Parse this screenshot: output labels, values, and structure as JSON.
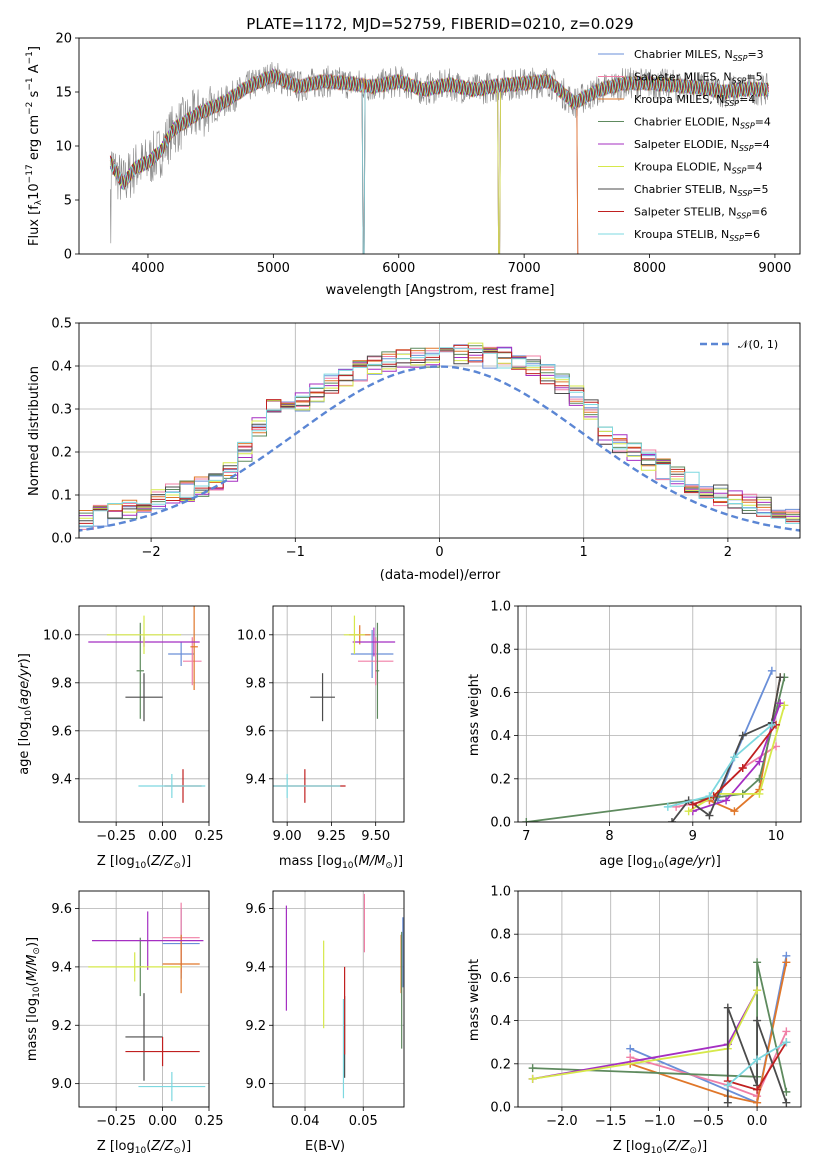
{
  "title": "PLATE=1172, MJD=52759, FIBERID=0210, z=0.029",
  "colors": {
    "Chabrier MILES": "#6a8fd8",
    "Salpeter MILES": "#f07fa6",
    "Kroupa MILES": "#e0772a",
    "Chabrier ELODIE": "#5e8a5e",
    "Salpeter ELODIE": "#a52fc2",
    "Kroupa ELODIE": "#d6e84a",
    "Chabrier STELIB": "#4b4b4b",
    "Salpeter STELIB": "#c02020",
    "Kroupa STELIB": "#7dd8e0"
  },
  "chart_data": [
    {
      "type": "line",
      "title": "PLATE=1172, MJD=52759, FIBERID=0210, z=0.029",
      "xlabel": "wavelength [Angstrom, rest frame]",
      "ylabel": "Flux [f_λ10^-17 erg cm^-2 s^-1 A^-1]",
      "xlim": [
        3450,
        9200
      ],
      "ylim": [
        0,
        20
      ],
      "xticks": [
        4000,
        5000,
        6000,
        7000,
        8000,
        9000
      ],
      "yticks": [
        0,
        5,
        10,
        15,
        20
      ],
      "legend": "top-right",
      "legend_entries": [
        {
          "model": "Chabrier MILES",
          "n": "3"
        },
        {
          "model": "Salpeter MILES",
          "n": "5"
        },
        {
          "model": "Kroupa MILES",
          "n": "4"
        },
        {
          "model": "Chabrier ELODIE",
          "n": "4"
        },
        {
          "model": "Salpeter ELODIE",
          "n": "4"
        },
        {
          "model": "Kroupa ELODIE",
          "n": "4"
        },
        {
          "model": "Chabrier STELIB",
          "n": "5"
        },
        {
          "model": "Salpeter STELIB",
          "n": "6"
        },
        {
          "model": "Kroupa STELIB",
          "n": "6"
        }
      ],
      "continuum": {
        "wave": [
          3700,
          3800,
          3900,
          4000,
          4100,
          4200,
          4400,
          4600,
          4800,
          5000,
          5200,
          5400,
          5600,
          5800,
          6000,
          6200,
          6400,
          6600,
          6800,
          7000,
          7200,
          7400,
          7600,
          7800,
          8000,
          8200,
          8400,
          8600,
          8800,
          8950
        ],
        "flux": [
          8.5,
          6.5,
          8.0,
          8.5,
          9.5,
          11.5,
          13.0,
          14.0,
          15.5,
          16.5,
          15.5,
          16.0,
          15.8,
          15.5,
          16.0,
          15.2,
          15.7,
          15.2,
          15.6,
          15.8,
          16.0,
          14.0,
          15.2,
          15.8,
          15.8,
          15.6,
          15.4,
          15.0,
          15.3,
          15.2
        ]
      },
      "model_cutoffs": [
        {
          "model": "Chabrier MILES",
          "wave": 7430
        },
        {
          "model": "Salpeter MILES",
          "wave": 7430
        },
        {
          "model": "Kroupa MILES",
          "wave": 7430
        },
        {
          "model": "Chabrier ELODIE",
          "wave": 6800
        },
        {
          "model": "Salpeter ELODIE",
          "wave": 6800
        },
        {
          "model": "Kroupa ELODIE",
          "wave": 6800
        },
        {
          "model": "Chabrier STELIB",
          "wave": 5720
        },
        {
          "model": "Salpeter STELIB",
          "wave": 5720
        },
        {
          "model": "Kroupa STELIB",
          "wave": 5720
        }
      ]
    },
    {
      "type": "bar",
      "xlabel": "(data-model)/error",
      "ylabel": "Normed distribution",
      "xlim": [
        -2.5,
        2.5
      ],
      "ylim": [
        0,
        0.5
      ],
      "xticks": [
        -2,
        -1,
        0,
        1,
        2
      ],
      "yticks": [
        0.0,
        0.1,
        0.2,
        0.3,
        0.4,
        0.5
      ],
      "ytick_labels": [
        "0.0",
        "0.1",
        "0.2",
        "0.3",
        "0.4",
        "0.5"
      ],
      "legend": "top-right",
      "legend_label": "𝒩(0, 1)",
      "bin_width": 0.1,
      "hist_base": [
        0.015,
        0.02,
        0.025,
        0.03,
        0.036,
        0.043,
        0.052,
        0.06,
        0.07,
        0.08,
        0.091,
        0.102,
        0.11,
        0.119,
        0.13,
        0.15,
        0.2,
        0.26,
        0.3,
        0.31,
        0.32,
        0.34,
        0.36,
        0.37,
        0.39,
        0.4,
        0.41,
        0.42,
        0.42,
        0.42,
        0.43,
        0.43,
        0.43,
        0.42,
        0.42,
        0.41,
        0.4,
        0.38,
        0.36,
        0.33,
        0.3,
        0.24,
        0.22,
        0.2,
        0.18,
        0.16,
        0.145,
        0.13,
        0.115,
        0.1,
        0.09,
        0.08,
        0.07,
        0.065,
        0.058,
        0.05,
        0.045,
        0.04,
        0.03,
        0.02
      ]
    },
    {
      "type": "scatter",
      "xlabel": "Z [log10(Z/Z⊙)]",
      "ylabel": "age  [log10(age/yr)]",
      "xlim": [
        -0.45,
        0.25
      ],
      "ylim": [
        9.22,
        10.12
      ],
      "xticks": [
        -0.25,
        0.0,
        0.25
      ],
      "xtick_labels": [
        "−0.25",
        "0.00",
        "0.25"
      ],
      "yticks": [
        9.4,
        9.6,
        9.8,
        10.0
      ],
      "ytick_labels": [
        "9.4",
        "9.6",
        "9.8",
        "10.0"
      ],
      "points": [
        {
          "model": "Chabrier MILES",
          "x": 0.1,
          "y": 9.92,
          "xe": 0.07,
          "ye": 0.05
        },
        {
          "model": "Salpeter MILES",
          "x": 0.16,
          "y": 9.89,
          "xe": 0.05,
          "ye": 0.1
        },
        {
          "model": "Kroupa MILES",
          "x": 0.17,
          "y": 9.95,
          "xe": 0.02,
          "ye": 0.18
        },
        {
          "model": "Chabrier ELODIE",
          "x": -0.12,
          "y": 9.85,
          "xe": 0.02,
          "ye": 0.2
        },
        {
          "model": "Salpeter ELODIE",
          "x": -0.1,
          "y": 9.97,
          "xe": 0.3,
          "ye": 0.02
        },
        {
          "model": "Kroupa ELODIE",
          "x": -0.1,
          "y": 10.0,
          "xe": 0.2,
          "ye": 0.08
        },
        {
          "model": "Chabrier STELIB",
          "x": -0.1,
          "y": 9.74,
          "xe": 0.1,
          "ye": 0.1
        },
        {
          "model": "Salpeter STELIB",
          "x": 0.11,
          "y": 9.37,
          "xe": 0.1,
          "ye": 0.07
        },
        {
          "model": "Kroupa STELIB",
          "x": 0.05,
          "y": 9.37,
          "xe": 0.18,
          "ye": 0.05
        }
      ]
    },
    {
      "type": "scatter",
      "xlabel": "mass [log10(M/M⊙)]",
      "ylabel": "",
      "xlim": [
        8.92,
        9.66
      ],
      "ylim": [
        9.22,
        10.12
      ],
      "xticks": [
        9.0,
        9.25,
        9.5
      ],
      "xtick_labels": [
        "9.00",
        "9.25",
        "9.50"
      ],
      "yticks": [
        9.4,
        9.6,
        9.8,
        10.0
      ],
      "ytick_labels": [
        "9.4",
        "9.6",
        "9.8",
        "10.0"
      ],
      "points": [
        {
          "model": "Chabrier MILES",
          "x": 9.48,
          "y": 9.92,
          "xe": 0.12,
          "ye": 0.1
        },
        {
          "model": "Salpeter MILES",
          "x": 9.5,
          "y": 9.89,
          "xe": 0.1,
          "ye": 0.1
        },
        {
          "model": "Kroupa MILES",
          "x": 9.41,
          "y": 10.0,
          "xe": 0.06,
          "ye": 0.04
        },
        {
          "model": "Chabrier ELODIE",
          "x": 9.51,
          "y": 9.85,
          "xe": 0.01,
          "ye": 0.2
        },
        {
          "model": "Salpeter ELODIE",
          "x": 9.49,
          "y": 9.97,
          "xe": 0.12,
          "ye": 0.06
        },
        {
          "model": "Kroupa ELODIE",
          "x": 9.38,
          "y": 10.0,
          "xe": 0.06,
          "ye": 0.08
        },
        {
          "model": "Chabrier STELIB",
          "x": 9.2,
          "y": 9.74,
          "xe": 0.07,
          "ye": 0.1
        },
        {
          "model": "Salpeter STELIB",
          "x": 9.1,
          "y": 9.37,
          "xe": 0.23,
          "ye": 0.07
        },
        {
          "model": "Kroupa STELIB",
          "x": 9.0,
          "y": 9.37,
          "xe": 0.3,
          "ye": 0.05
        }
      ]
    },
    {
      "type": "line",
      "xlabel": "age  [log10(age/yr)]",
      "ylabel": "mass weight",
      "xlim": [
        6.9,
        10.3
      ],
      "ylim": [
        0,
        1
      ],
      "xticks": [
        7,
        8,
        9,
        10
      ],
      "yticks": [
        0.0,
        0.2,
        0.4,
        0.6,
        0.8,
        1.0
      ],
      "ytick_labels": [
        "0.0",
        "0.2",
        "0.4",
        "0.6",
        "0.8",
        "1.0"
      ],
      "series": [
        {
          "model": "Chabrier MILES",
          "x": [
            9.3,
            9.5,
            9.95
          ],
          "y": [
            0.1,
            0.3,
            0.7
          ]
        },
        {
          "model": "Salpeter MILES",
          "x": [
            8.8,
            9.2,
            9.6,
            10.0
          ],
          "y": [
            0.07,
            0.1,
            0.25,
            0.35
          ]
        },
        {
          "model": "Kroupa MILES",
          "x": [
            9.2,
            9.5,
            9.8,
            10.05
          ],
          "y": [
            0.1,
            0.05,
            0.15,
            0.67
          ]
        },
        {
          "model": "Chabrier ELODIE",
          "x": [
            7.0,
            9.6,
            9.8,
            10.1
          ],
          "y": [
            0.0,
            0.13,
            0.2,
            0.67
          ]
        },
        {
          "model": "Salpeter ELODIE",
          "x": [
            9.0,
            9.4,
            9.8,
            10.05
          ],
          "y": [
            0.05,
            0.1,
            0.28,
            0.55
          ]
        },
        {
          "model": "Kroupa ELODIE",
          "x": [
            8.95,
            9.3,
            9.8,
            10.1
          ],
          "y": [
            0.05,
            0.13,
            0.13,
            0.54
          ]
        },
        {
          "model": "Chabrier STELIB",
          "x": [
            8.75,
            8.95,
            9.2,
            9.6,
            9.95,
            10.05
          ],
          "y": [
            0.0,
            0.1,
            0.03,
            0.4,
            0.46,
            0.67
          ]
        },
        {
          "model": "Salpeter STELIB",
          "x": [
            9.0,
            9.25,
            9.6,
            10.0
          ],
          "y": [
            0.08,
            0.12,
            0.25,
            0.45
          ]
        },
        {
          "model": "Kroupa STELIB",
          "x": [
            8.7,
            9.2,
            9.5,
            9.95
          ],
          "y": [
            0.07,
            0.12,
            0.3,
            0.45
          ]
        }
      ]
    },
    {
      "type": "scatter",
      "xlabel": "Z [log10(Z/Z⊙)]",
      "ylabel": "mass [log10(M/M⊙)]",
      "xlim": [
        -0.45,
        0.25
      ],
      "ylim": [
        8.92,
        9.66
      ],
      "xticks": [
        -0.25,
        0.0,
        0.25
      ],
      "xtick_labels": [
        "−0.25",
        "0.00",
        "0.25"
      ],
      "yticks": [
        9.0,
        9.2,
        9.4,
        9.6
      ],
      "ytick_labels": [
        "9.0",
        "9.2",
        "9.4",
        "9.6"
      ],
      "points": [
        {
          "model": "Chabrier MILES",
          "x": 0.1,
          "y": 9.48,
          "xe": 0.1,
          "ye": 0.12
        },
        {
          "model": "Salpeter MILES",
          "x": 0.1,
          "y": 9.5,
          "xe": 0.1,
          "ye": 0.12
        },
        {
          "model": "Kroupa MILES",
          "x": 0.1,
          "y": 9.41,
          "xe": 0.1,
          "ye": 0.1
        },
        {
          "model": "Chabrier ELODIE",
          "x": -0.12,
          "y": 9.4,
          "xe": 0.02,
          "ye": 0.1
        },
        {
          "model": "Salpeter ELODIE",
          "x": -0.08,
          "y": 9.49,
          "xe": 0.3,
          "ye": 0.1
        },
        {
          "model": "Kroupa ELODIE",
          "x": -0.15,
          "y": 9.4,
          "xe": 0.25,
          "ye": 0.05
        },
        {
          "model": "Chabrier STELIB",
          "x": -0.1,
          "y": 9.16,
          "xe": 0.1,
          "ye": 0.15
        },
        {
          "model": "Salpeter STELIB",
          "x": 0.0,
          "y": 9.11,
          "xe": 0.2,
          "ye": 0.05
        },
        {
          "model": "Kroupa STELIB",
          "x": 0.05,
          "y": 8.99,
          "xe": 0.18,
          "ye": 0.05
        }
      ]
    },
    {
      "type": "scatter",
      "xlabel": "E(B-V)",
      "ylabel": "",
      "xlim": [
        0.0345,
        0.057
      ],
      "ylim": [
        8.92,
        9.66
      ],
      "xticks": [
        0.04,
        0.05
      ],
      "xtick_labels": [
        "0.04",
        "0.05"
      ],
      "yticks": [
        9.0,
        9.2,
        9.4,
        9.6
      ],
      "ytick_labels": [
        "9.0",
        "9.2",
        "9.4",
        "9.6"
      ],
      "points": [
        {
          "model": "Chabrier MILES",
          "x": 0.0568,
          "y": 9.45,
          "xe": 0,
          "ye": 0.12
        },
        {
          "model": "Salpeter MILES",
          "x": 0.0502,
          "y": 9.55,
          "xe": 0,
          "ye": 0.1
        },
        {
          "model": "Kroupa MILES",
          "x": 0.0565,
          "y": 9.41,
          "xe": 0,
          "ye": 0.1
        },
        {
          "model": "Chabrier ELODIE",
          "x": 0.0566,
          "y": 9.32,
          "xe": 0,
          "ye": 0.2
        },
        {
          "model": "Salpeter ELODIE",
          "x": 0.0368,
          "y": 9.43,
          "xe": 0,
          "ye": 0.18
        },
        {
          "model": "Kroupa ELODIE",
          "x": 0.0432,
          "y": 9.34,
          "xe": 0,
          "ye": 0.15
        },
        {
          "model": "Chabrier STELIB",
          "x": 0.0468,
          "y": 9.16,
          "xe": 0,
          "ye": 0.14
        },
        {
          "model": "Salpeter STELIB",
          "x": 0.0468,
          "y": 9.25,
          "xe": 0,
          "ye": 0.15
        },
        {
          "model": "Kroupa STELIB",
          "x": 0.0466,
          "y": 9.12,
          "xe": 0,
          "ye": 0.17
        }
      ]
    },
    {
      "type": "line",
      "xlabel": "Z [log10(Z/Z⊙)]",
      "ylabel": "mass weight",
      "xlim": [
        -2.45,
        0.45
      ],
      "ylim": [
        0,
        1
      ],
      "xticks": [
        -2.0,
        -1.5,
        -1.0,
        -0.5,
        0.0
      ],
      "xtick_labels": [
        "−2.0",
        "−1.5",
        "−1.0",
        "−0.5",
        "0.0"
      ],
      "yticks": [
        0.0,
        0.2,
        0.4,
        0.6,
        0.8,
        1.0
      ],
      "ytick_labels": [
        "0.0",
        "0.2",
        "0.4",
        "0.6",
        "0.8",
        "1.0"
      ],
      "series": [
        {
          "model": "Chabrier MILES",
          "x": [
            -1.3,
            0.0,
            0.3
          ],
          "y": [
            0.27,
            0.02,
            0.7
          ]
        },
        {
          "model": "Salpeter MILES",
          "x": [
            -1.3,
            -0.3,
            0.0,
            0.3
          ],
          "y": [
            0.23,
            0.1,
            0.05,
            0.35
          ]
        },
        {
          "model": "Kroupa MILES",
          "x": [
            -1.3,
            -0.3,
            0.0,
            0.3
          ],
          "y": [
            0.2,
            0.05,
            0.02,
            0.67
          ]
        },
        {
          "model": "Chabrier ELODIE",
          "x": [
            -2.3,
            0.0,
            0.0,
            0.3
          ],
          "y": [
            0.18,
            0.14,
            0.67,
            0.07
          ]
        },
        {
          "model": "Salpeter ELODIE",
          "x": [
            -2.3,
            -0.3,
            0.0
          ],
          "y": [
            0.13,
            0.29,
            0.54
          ]
        },
        {
          "model": "Kroupa ELODIE",
          "x": [
            -2.3,
            -0.3,
            0.0
          ],
          "y": [
            0.13,
            0.27,
            0.54
          ]
        },
        {
          "model": "Chabrier STELIB",
          "x": [
            -0.3,
            -0.3,
            0.0,
            0.0,
            0.3
          ],
          "y": [
            0.02,
            0.46,
            0.1,
            0.4,
            0.02
          ]
        },
        {
          "model": "Salpeter STELIB",
          "x": [
            -0.3,
            0.0,
            0.3
          ],
          "y": [
            0.12,
            0.08,
            0.3
          ]
        },
        {
          "model": "Kroupa STELIB",
          "x": [
            -0.3,
            0.0,
            0.3
          ],
          "y": [
            0.1,
            0.22,
            0.3
          ]
        }
      ]
    }
  ]
}
